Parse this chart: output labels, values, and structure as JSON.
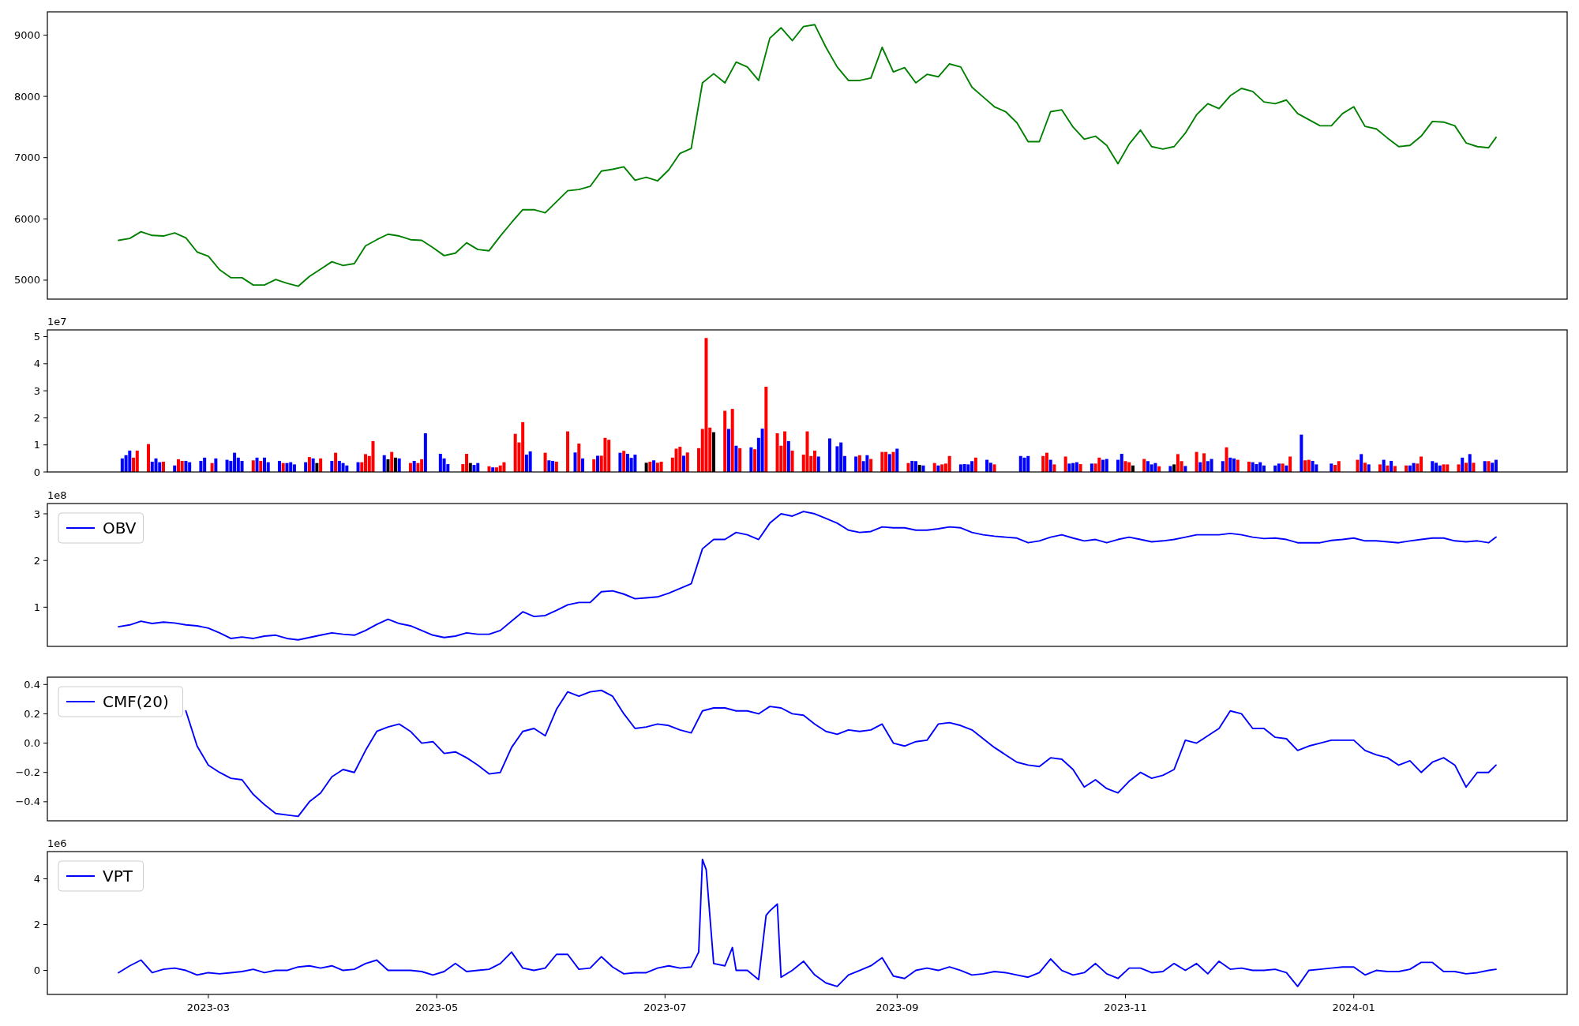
{
  "chart_data": [
    {
      "type": "line",
      "xlim": [
        "2023-01-17",
        "2024-02-27"
      ],
      "ylim": [
        4690,
        9380
      ],
      "yticks": [
        5000,
        6000,
        7000,
        8000,
        9000
      ],
      "tick_labels": "y",
      "x": [
        "2023-02-05",
        "2023-02-08",
        "2023-02-11",
        "2023-02-14",
        "2023-02-17",
        "2023-02-20",
        "2023-02-23",
        "2023-02-26",
        "2023-03-01",
        "2023-03-04",
        "2023-03-07",
        "2023-03-10",
        "2023-03-13",
        "2023-03-16",
        "2023-03-19",
        "2023-03-22",
        "2023-03-25",
        "2023-03-28",
        "2023-03-31",
        "2023-04-03",
        "2023-04-06",
        "2023-04-09",
        "2023-04-12",
        "2023-04-15",
        "2023-04-18",
        "2023-04-21",
        "2023-04-24",
        "2023-04-27",
        "2023-04-30",
        "2023-05-03",
        "2023-05-06",
        "2023-05-09",
        "2023-05-12",
        "2023-05-15",
        "2023-05-18",
        "2023-05-21",
        "2023-05-24",
        "2023-05-27",
        "2023-05-30",
        "2023-06-02",
        "2023-06-05",
        "2023-06-08",
        "2023-06-11",
        "2023-06-14",
        "2023-06-17",
        "2023-06-20",
        "2023-06-23",
        "2023-06-26",
        "2023-06-29",
        "2023-07-02",
        "2023-07-05",
        "2023-07-08",
        "2023-07-11",
        "2023-07-14",
        "2023-07-17",
        "2023-07-20",
        "2023-07-23",
        "2023-07-26",
        "2023-07-29",
        "2023-08-01",
        "2023-08-04",
        "2023-08-07",
        "2023-08-10",
        "2023-08-13",
        "2023-08-16",
        "2023-08-19",
        "2023-08-22",
        "2023-08-25",
        "2023-08-28",
        "2023-08-31",
        "2023-09-03",
        "2023-09-06",
        "2023-09-09",
        "2023-09-12",
        "2023-09-15",
        "2023-09-18",
        "2023-09-21",
        "2023-09-24",
        "2023-09-27",
        "2023-09-30",
        "2023-10-03",
        "2023-10-06",
        "2023-10-09",
        "2023-10-12",
        "2023-10-15",
        "2023-10-18",
        "2023-10-21",
        "2023-10-24",
        "2023-10-27",
        "2023-10-30",
        "2023-11-02",
        "2023-11-05",
        "2023-11-08",
        "2023-11-11",
        "2023-11-14",
        "2023-11-17",
        "2023-11-20",
        "2023-11-23",
        "2023-11-26",
        "2023-11-29",
        "2023-12-02",
        "2023-12-05",
        "2023-12-08",
        "2023-12-11",
        "2023-12-14",
        "2023-12-17",
        "2023-12-20",
        "2023-12-23",
        "2023-12-26",
        "2023-12-29",
        "2024-01-01",
        "2024-01-04",
        "2024-01-07",
        "2024-01-10",
        "2024-01-13",
        "2024-01-16",
        "2024-01-19",
        "2024-01-22",
        "2024-01-25",
        "2024-01-28",
        "2024-01-31",
        "2024-02-03",
        "2024-02-06",
        "2024-02-08"
      ],
      "series": [
        {
          "color": "#008000",
          "values": [
            5650,
            5680,
            5790,
            5730,
            5720,
            5770,
            5690,
            5460,
            5390,
            5170,
            5040,
            5040,
            4920,
            4920,
            5010,
            4950,
            4900,
            5060,
            5180,
            5300,
            5240,
            5270,
            5560,
            5660,
            5750,
            5720,
            5660,
            5650,
            5530,
            5400,
            5440,
            5610,
            5500,
            5480,
            5720,
            5940,
            6150,
            6150,
            6100,
            6280,
            6460,
            6480,
            6530,
            6780,
            6810,
            6850,
            6630,
            6680,
            6620,
            6800,
            7070,
            7150,
            8220,
            8370,
            8220,
            8560,
            8480,
            8260,
            8950,
            9120,
            8910,
            9140,
            9170,
            8800,
            8480,
            8260,
            8260,
            8300,
            8800,
            8400,
            8470,
            8220,
            8360,
            8320,
            8530,
            8480,
            8150,
            7990,
            7830,
            7750,
            7570,
            7260,
            7260,
            7750,
            7780,
            7500,
            7300,
            7350,
            7200,
            6900,
            7220,
            7450,
            7180,
            7140,
            7180,
            7400,
            7700,
            7880,
            7800,
            8010,
            8130,
            8080,
            7910,
            7880,
            7940,
            7720,
            7620,
            7520,
            7520,
            7720,
            7830,
            7510,
            7470,
            7320,
            7180,
            7200,
            7350,
            7590,
            7580,
            7520,
            7240,
            7180,
            7160,
            7330
          ]
        }
      ]
    },
    {
      "type": "bar",
      "xlim": [
        "2023-01-17",
        "2024-02-27"
      ],
      "ylim": [
        0,
        5.25
      ],
      "yticks": [
        0,
        1,
        2,
        3,
        4,
        5
      ],
      "tick_labels": "y",
      "annotations": [
        "1e7"
      ],
      "x": [
        "2023-02-06",
        "2023-02-07",
        "2023-02-08",
        "2023-02-09",
        "2023-02-10",
        "2023-02-13",
        "2023-02-14",
        "2023-02-15",
        "2023-02-16",
        "2023-02-17",
        "2023-02-20",
        "2023-02-21",
        "2023-02-22",
        "2023-02-23",
        "2023-02-24",
        "2023-02-27",
        "2023-02-28",
        "2023-03-02",
        "2023-03-03",
        "2023-03-06",
        "2023-03-07",
        "2023-03-08",
        "2023-03-09",
        "2023-03-10",
        "2023-03-13",
        "2023-03-14",
        "2023-03-15",
        "2023-03-16",
        "2023-03-17",
        "2023-03-20",
        "2023-03-21",
        "2023-03-22",
        "2023-03-23",
        "2023-03-24",
        "2023-03-27",
        "2023-03-28",
        "2023-03-29",
        "2023-03-30",
        "2023-03-31",
        "2023-04-03",
        "2023-04-04",
        "2023-04-05",
        "2023-04-06",
        "2023-04-07",
        "2023-04-10",
        "2023-04-11",
        "2023-04-12",
        "2023-04-13",
        "2023-04-14",
        "2023-04-17",
        "2023-04-18",
        "2023-04-19",
        "2023-04-20",
        "2023-04-21",
        "2023-04-24",
        "2023-04-25",
        "2023-04-26",
        "2023-04-27",
        "2023-04-28",
        "2023-05-02",
        "2023-05-03",
        "2023-05-04",
        "2023-05-08",
        "2023-05-09",
        "2023-05-10",
        "2023-05-11",
        "2023-05-12",
        "2023-05-15",
        "2023-05-16",
        "2023-05-17",
        "2023-05-18",
        "2023-05-19",
        "2023-05-22",
        "2023-05-23",
        "2023-05-24",
        "2023-05-25",
        "2023-05-26",
        "2023-05-30",
        "2023-05-31",
        "2023-06-01",
        "2023-06-02",
        "2023-06-05",
        "2023-06-07",
        "2023-06-08",
        "2023-06-09",
        "2023-06-12",
        "2023-06-13",
        "2023-06-14",
        "2023-06-15",
        "2023-06-16",
        "2023-06-19",
        "2023-06-20",
        "2023-06-21",
        "2023-06-22",
        "2023-06-23",
        "2023-06-26",
        "2023-06-27",
        "2023-06-28",
        "2023-06-29",
        "2023-06-30",
        "2023-07-03",
        "2023-07-04",
        "2023-07-05",
        "2023-07-06",
        "2023-07-07",
        "2023-07-10",
        "2023-07-11",
        "2023-07-12",
        "2023-07-13",
        "2023-07-14",
        "2023-07-17",
        "2023-07-18",
        "2023-07-19",
        "2023-07-20",
        "2023-07-21",
        "2023-07-24",
        "2023-07-25",
        "2023-07-26",
        "2023-07-27",
        "2023-07-28",
        "2023-07-31",
        "2023-08-01",
        "2023-08-02",
        "2023-08-03",
        "2023-08-04",
        "2023-08-07",
        "2023-08-08",
        "2023-08-09",
        "2023-08-10",
        "2023-08-11",
        "2023-08-14",
        "2023-08-16",
        "2023-08-17",
        "2023-08-18",
        "2023-08-21",
        "2023-08-22",
        "2023-08-23",
        "2023-08-24",
        "2023-08-25",
        "2023-08-28",
        "2023-08-29",
        "2023-08-30",
        "2023-08-31",
        "2023-09-01",
        "2023-09-04",
        "2023-09-05",
        "2023-09-06",
        "2023-09-07",
        "2023-09-08",
        "2023-09-11",
        "2023-09-12",
        "2023-09-13",
        "2023-09-14",
        "2023-09-15",
        "2023-09-18",
        "2023-09-19",
        "2023-09-20",
        "2023-09-21",
        "2023-09-22",
        "2023-09-25",
        "2023-09-26",
        "2023-09-27",
        "2023-10-04",
        "2023-10-05",
        "2023-10-06",
        "2023-10-10",
        "2023-10-11",
        "2023-10-12",
        "2023-10-13",
        "2023-10-16",
        "2023-10-17",
        "2023-10-18",
        "2023-10-19",
        "2023-10-20",
        "2023-10-23",
        "2023-10-24",
        "2023-10-25",
        "2023-10-26",
        "2023-10-27",
        "2023-10-30",
        "2023-10-31",
        "2023-11-01",
        "2023-11-02",
        "2023-11-03",
        "2023-11-06",
        "2023-11-07",
        "2023-11-08",
        "2023-11-09",
        "2023-11-10",
        "2023-11-13",
        "2023-11-14",
        "2023-11-15",
        "2023-11-16",
        "2023-11-17",
        "2023-11-20",
        "2023-11-21",
        "2023-11-22",
        "2023-11-23",
        "2023-11-24",
        "2023-11-27",
        "2023-11-28",
        "2023-11-29",
        "2023-11-30",
        "2023-12-01",
        "2023-12-04",
        "2023-12-05",
        "2023-12-06",
        "2023-12-07",
        "2023-12-08",
        "2023-12-11",
        "2023-12-12",
        "2023-12-13",
        "2023-12-14",
        "2023-12-15",
        "2023-12-18",
        "2023-12-19",
        "2023-12-20",
        "2023-12-21",
        "2023-12-22",
        "2023-12-26",
        "2023-12-27",
        "2023-12-28",
        "2024-01-02",
        "2024-01-03",
        "2024-01-04",
        "2024-01-05",
        "2024-01-08",
        "2024-01-09",
        "2024-01-10",
        "2024-01-11",
        "2024-01-12",
        "2024-01-15",
        "2024-01-16",
        "2024-01-17",
        "2024-01-18",
        "2024-01-19",
        "2024-01-22",
        "2024-01-23",
        "2024-01-24",
        "2024-01-25",
        "2024-01-26",
        "2024-01-29",
        "2024-01-30",
        "2024-01-31",
        "2024-02-01",
        "2024-02-02",
        "2024-02-05",
        "2024-02-06",
        "2024-02-07",
        "2024-02-08"
      ],
      "values": [
        0.5,
        0.62,
        0.79,
        0.53,
        0.79,
        1.03,
        0.38,
        0.5,
        0.36,
        0.38,
        0.24,
        0.47,
        0.41,
        0.41,
        0.36,
        0.41,
        0.53,
        0.33,
        0.5,
        0.45,
        0.41,
        0.71,
        0.53,
        0.41,
        0.43,
        0.53,
        0.41,
        0.53,
        0.36,
        0.41,
        0.33,
        0.33,
        0.36,
        0.28,
        0.36,
        0.55,
        0.5,
        0.33,
        0.5,
        0.41,
        0.71,
        0.41,
        0.33,
        0.24,
        0.36,
        0.36,
        0.66,
        0.59,
        1.14,
        0.62,
        0.47,
        0.74,
        0.53,
        0.5,
        0.33,
        0.41,
        0.33,
        0.47,
        1.43,
        0.67,
        0.5,
        0.29,
        0.29,
        0.67,
        0.33,
        0.26,
        0.33,
        0.21,
        0.17,
        0.17,
        0.24,
        0.36,
        1.41,
        1.09,
        1.84,
        0.64,
        0.76,
        0.71,
        0.43,
        0.41,
        0.38,
        1.5,
        0.72,
        1.05,
        0.5,
        0.47,
        0.6,
        0.6,
        1.26,
        1.19,
        0.71,
        0.78,
        0.67,
        0.52,
        0.64,
        0.34,
        0.38,
        0.43,
        0.34,
        0.38,
        0.53,
        0.86,
        0.93,
        0.6,
        0.72,
        0.88,
        1.59,
        4.95,
        1.64,
        1.47,
        2.26,
        1.59,
        2.33,
        0.97,
        0.88,
        0.91,
        0.84,
        1.26,
        1.6,
        3.15,
        1.43,
        0.97,
        1.5,
        1.14,
        0.79,
        0.64,
        1.5,
        0.59,
        0.79,
        0.57,
        1.24,
        0.95,
        1.09,
        0.59,
        0.57,
        0.62,
        0.4,
        0.62,
        0.48,
        0.74,
        0.74,
        0.66,
        0.74,
        0.86,
        0.33,
        0.41,
        0.4,
        0.26,
        0.24,
        0.33,
        0.24,
        0.28,
        0.31,
        0.59,
        0.28,
        0.29,
        0.28,
        0.4,
        0.53,
        0.45,
        0.34,
        0.28,
        0.59,
        0.53,
        0.59,
        0.59,
        0.71,
        0.45,
        0.28,
        0.57,
        0.31,
        0.33,
        0.36,
        0.29,
        0.31,
        0.31,
        0.53,
        0.45,
        0.48,
        0.45,
        0.67,
        0.4,
        0.36,
        0.24,
        0.48,
        0.4,
        0.28,
        0.33,
        0.21,
        0.22,
        0.28,
        0.66,
        0.4,
        0.22,
        0.74,
        0.36,
        0.69,
        0.4,
        0.48,
        0.4,
        0.91,
        0.53,
        0.5,
        0.45,
        0.38,
        0.36,
        0.29,
        0.36,
        0.24,
        0.24,
        0.31,
        0.31,
        0.24,
        0.57,
        1.38,
        0.43,
        0.45,
        0.41,
        0.28,
        0.31,
        0.26,
        0.4,
        0.45,
        0.66,
        0.34,
        0.28,
        0.28,
        0.45,
        0.24,
        0.41,
        0.22,
        0.24,
        0.24,
        0.33,
        0.31,
        0.57,
        0.4,
        0.34,
        0.24,
        0.28,
        0.28,
        0.28,
        0.53,
        0.34,
        0.66,
        0.34,
        0.4,
        0.4,
        0.34,
        0.45
      ],
      "colors": [
        "#0000ff",
        "#0000ff",
        "#0000ff",
        "#ff0000",
        "#ff0000",
        "#ff0000",
        "#0000ff",
        "#0000ff",
        "#0000ff",
        "#ff0000",
        "#0000ff",
        "#ff0000",
        "#ff0000",
        "#0000ff",
        "#0000ff",
        "#0000ff",
        "#0000ff",
        "#ff0000",
        "#0000ff",
        "#0000ff",
        "#0000ff",
        "#0000ff",
        "#0000ff",
        "#0000ff",
        "#ff0000",
        "#0000ff",
        "#ff0000",
        "#0000ff",
        "#0000ff",
        "#0000ff",
        "#ff0000",
        "#0000ff",
        "#0000ff",
        "#0000ff",
        "#0000ff",
        "#ff0000",
        "#0000ff",
        "#000000",
        "#ff0000",
        "#0000ff",
        "#ff0000",
        "#0000ff",
        "#0000ff",
        "#0000ff",
        "#0000ff",
        "#ff0000",
        "#ff0000",
        "#ff0000",
        "#ff0000",
        "#0000ff",
        "#000000",
        "#ff0000",
        "#000000",
        "#0000ff",
        "#ff0000",
        "#0000ff",
        "#ff0000",
        "#ff0000",
        "#0000ff",
        "#0000ff",
        "#0000ff",
        "#0000ff",
        "#ff0000",
        "#ff0000",
        "#000000",
        "#0000ff",
        "#0000ff",
        "#ff0000",
        "#0000ff",
        "#ff0000",
        "#ff0000",
        "#ff0000",
        "#ff0000",
        "#ff0000",
        "#ff0000",
        "#0000ff",
        "#0000ff",
        "#ff0000",
        "#0000ff",
        "#0000ff",
        "#ff0000",
        "#ff0000",
        "#0000ff",
        "#ff0000",
        "#0000ff",
        "#ff0000",
        "#0000ff",
        "#ff0000",
        "#ff0000",
        "#ff0000",
        "#0000ff",
        "#ff0000",
        "#0000ff",
        "#0000ff",
        "#0000ff",
        "#000000",
        "#ff0000",
        "#0000ff",
        "#ff0000",
        "#ff0000",
        "#ff0000",
        "#ff0000",
        "#ff0000",
        "#0000ff",
        "#ff0000",
        "#ff0000",
        "#ff0000",
        "#ff0000",
        "#ff0000",
        "#000000",
        "#ff0000",
        "#0000ff",
        "#ff0000",
        "#0000ff",
        "#ff0000",
        "#0000ff",
        "#ff0000",
        "#0000ff",
        "#0000ff",
        "#ff0000",
        "#ff0000",
        "#ff0000",
        "#ff0000",
        "#0000ff",
        "#ff0000",
        "#ff0000",
        "#ff0000",
        "#ff0000",
        "#ff0000",
        "#0000ff",
        "#0000ff",
        "#0000ff",
        "#0000ff",
        "#0000ff",
        "#0000ff",
        "#ff0000",
        "#0000ff",
        "#0000ff",
        "#ff0000",
        "#ff0000",
        "#ff0000",
        "#0000ff",
        "#ff0000",
        "#0000ff",
        "#ff0000",
        "#0000ff",
        "#0000ff",
        "#000000",
        "#0000ff",
        "#ff0000",
        "#0000ff",
        "#ff0000",
        "#ff0000",
        "#ff0000",
        "#0000ff",
        "#0000ff",
        "#0000ff",
        "#0000ff",
        "#ff0000",
        "#0000ff",
        "#0000ff",
        "#ff0000",
        "#0000ff",
        "#0000ff",
        "#0000ff",
        "#ff0000",
        "#ff0000",
        "#0000ff",
        "#ff0000",
        "#ff0000",
        "#0000ff",
        "#0000ff",
        "#0000ff",
        "#ff0000",
        "#0000ff",
        "#ff0000",
        "#ff0000",
        "#0000ff",
        "#0000ff",
        "#0000ff",
        "#0000ff",
        "#ff0000",
        "#ff0000",
        "#000000",
        "#ff0000",
        "#0000ff",
        "#0000ff",
        "#0000ff",
        "#ff0000",
        "#0000ff",
        "#000000",
        "#ff0000",
        "#ff0000",
        "#0000ff",
        "#ff0000",
        "#0000ff",
        "#ff0000",
        "#0000ff",
        "#0000ff",
        "#0000ff",
        "#ff0000",
        "#0000ff",
        "#0000ff",
        "#ff0000",
        "#ff0000",
        "#0000ff",
        "#0000ff",
        "#0000ff",
        "#0000ff",
        "#0000ff",
        "#0000ff",
        "#ff0000",
        "#0000ff",
        "#ff0000",
        "#0000ff",
        "#ff0000",
        "#ff0000",
        "#0000ff",
        "#0000ff",
        "#0000ff",
        "#ff0000",
        "#ff0000",
        "#ff0000",
        "#0000ff",
        "#ff0000",
        "#0000ff",
        "#ff0000",
        "#0000ff",
        "#ff0000",
        "#0000ff",
        "#ff0000",
        "#ff0000",
        "#0000ff",
        "#0000ff",
        "#ff0000",
        "#ff0000",
        "#0000ff",
        "#0000ff",
        "#0000ff",
        "#ff0000",
        "#ff0000",
        "#ff0000",
        "#0000ff",
        "#ff0000",
        "#0000ff",
        "#ff0000",
        "#0000ff",
        "#ff0000",
        "#0000ff",
        "#0000ff"
      ]
    },
    {
      "type": "line",
      "xlim": [
        "2023-01-17",
        "2024-02-27"
      ],
      "ylim": [
        0.16,
        3.22
      ],
      "yticks": [
        1,
        2,
        3
      ],
      "tick_labels": "y",
      "annotations": [
        "1e8"
      ],
      "legend": "top left",
      "x": [
        "2023-02-05",
        "2023-02-08",
        "2023-02-11",
        "2023-02-14",
        "2023-02-17",
        "2023-02-20",
        "2023-02-23",
        "2023-02-26",
        "2023-03-01",
        "2023-03-04",
        "2023-03-07",
        "2023-03-10",
        "2023-03-13",
        "2023-03-16",
        "2023-03-19",
        "2023-03-22",
        "2023-03-25",
        "2023-03-28",
        "2023-03-31",
        "2023-04-03",
        "2023-04-06",
        "2023-04-09",
        "2023-04-12",
        "2023-04-15",
        "2023-04-18",
        "2023-04-21",
        "2023-04-24",
        "2023-04-27",
        "2023-04-30",
        "2023-05-03",
        "2023-05-06",
        "2023-05-09",
        "2023-05-12",
        "2023-05-15",
        "2023-05-18",
        "2023-05-21",
        "2023-05-24",
        "2023-05-27",
        "2023-05-30",
        "2023-06-02",
        "2023-06-05",
        "2023-06-08",
        "2023-06-11",
        "2023-06-14",
        "2023-06-17",
        "2023-06-20",
        "2023-06-23",
        "2023-06-26",
        "2023-06-29",
        "2023-07-02",
        "2023-07-05",
        "2023-07-08",
        "2023-07-11",
        "2023-07-14",
        "2023-07-17",
        "2023-07-20",
        "2023-07-23",
        "2023-07-26",
        "2023-07-29",
        "2023-08-01",
        "2023-08-04",
        "2023-08-07",
        "2023-08-10",
        "2023-08-13",
        "2023-08-16",
        "2023-08-19",
        "2023-08-22",
        "2023-08-25",
        "2023-08-28",
        "2023-08-31",
        "2023-09-03",
        "2023-09-06",
        "2023-09-09",
        "2023-09-12",
        "2023-09-15",
        "2023-09-18",
        "2023-09-21",
        "2023-09-24",
        "2023-09-27",
        "2023-09-30",
        "2023-10-03",
        "2023-10-06",
        "2023-10-09",
        "2023-10-12",
        "2023-10-15",
        "2023-10-18",
        "2023-10-21",
        "2023-10-24",
        "2023-10-27",
        "2023-10-30",
        "2023-11-02",
        "2023-11-05",
        "2023-11-08",
        "2023-11-11",
        "2023-11-14",
        "2023-11-17",
        "2023-11-20",
        "2023-11-23",
        "2023-11-26",
        "2023-11-29",
        "2023-12-02",
        "2023-12-05",
        "2023-12-08",
        "2023-12-11",
        "2023-12-14",
        "2023-12-17",
        "2023-12-20",
        "2023-12-23",
        "2023-12-26",
        "2023-12-29",
        "2024-01-01",
        "2024-01-04",
        "2024-01-07",
        "2024-01-10",
        "2024-01-13",
        "2024-01-16",
        "2024-01-19",
        "2024-01-22",
        "2024-01-25",
        "2024-01-28",
        "2024-01-31",
        "2024-02-03",
        "2024-02-06",
        "2024-02-08"
      ],
      "series": [
        {
          "name": "OBV",
          "color": "#0000ff",
          "values": [
            0.58,
            0.62,
            0.7,
            0.65,
            0.68,
            0.66,
            0.62,
            0.6,
            0.55,
            0.45,
            0.33,
            0.36,
            0.33,
            0.38,
            0.4,
            0.33,
            0.3,
            0.35,
            0.4,
            0.45,
            0.42,
            0.4,
            0.5,
            0.63,
            0.74,
            0.65,
            0.6,
            0.5,
            0.4,
            0.35,
            0.38,
            0.45,
            0.42,
            0.42,
            0.5,
            0.7,
            0.9,
            0.8,
            0.82,
            0.93,
            1.05,
            1.1,
            1.1,
            1.33,
            1.35,
            1.28,
            1.18,
            1.2,
            1.22,
            1.3,
            1.4,
            1.5,
            2.25,
            2.45,
            2.45,
            2.6,
            2.55,
            2.45,
            2.8,
            3.0,
            2.95,
            3.05,
            3.0,
            2.9,
            2.8,
            2.65,
            2.6,
            2.62,
            2.72,
            2.7,
            2.7,
            2.65,
            2.65,
            2.68,
            2.72,
            2.7,
            2.6,
            2.55,
            2.52,
            2.5,
            2.48,
            2.38,
            2.42,
            2.5,
            2.55,
            2.48,
            2.42,
            2.45,
            2.38,
            2.45,
            2.5,
            2.45,
            2.4,
            2.42,
            2.45,
            2.5,
            2.55,
            2.55,
            2.55,
            2.58,
            2.55,
            2.5,
            2.47,
            2.48,
            2.45,
            2.38,
            2.38,
            2.38,
            2.43,
            2.45,
            2.48,
            2.42,
            2.42,
            2.4,
            2.38,
            2.42,
            2.45,
            2.48,
            2.48,
            2.42,
            2.4,
            2.42,
            2.38,
            2.5
          ]
        }
      ]
    },
    {
      "type": "line",
      "xlim": [
        "2023-01-17",
        "2024-02-27"
      ],
      "ylim": [
        -0.53,
        0.45
      ],
      "yticks": [
        {
          "value": -0.4,
          "label": "−0.4"
        },
        {
          "value": -0.2,
          "label": "−0.2"
        },
        {
          "value": 0,
          "label": "0.0"
        },
        0.2,
        0.4
      ],
      "tick_labels": "y",
      "legend": "top left",
      "x": [
        "2023-02-23",
        "2023-02-26",
        "2023-03-01",
        "2023-03-04",
        "2023-03-07",
        "2023-03-10",
        "2023-03-13",
        "2023-03-16",
        "2023-03-19",
        "2023-03-22",
        "2023-03-25",
        "2023-03-28",
        "2023-03-31",
        "2023-04-03",
        "2023-04-06",
        "2023-04-09",
        "2023-04-12",
        "2023-04-15",
        "2023-04-18",
        "2023-04-21",
        "2023-04-24",
        "2023-04-27",
        "2023-04-30",
        "2023-05-03",
        "2023-05-06",
        "2023-05-09",
        "2023-05-12",
        "2023-05-15",
        "2023-05-18",
        "2023-05-21",
        "2023-05-24",
        "2023-05-27",
        "2023-05-30",
        "2023-06-02",
        "2023-06-05",
        "2023-06-08",
        "2023-06-11",
        "2023-06-14",
        "2023-06-17",
        "2023-06-20",
        "2023-06-23",
        "2023-06-26",
        "2023-06-29",
        "2023-07-02",
        "2023-07-05",
        "2023-07-08",
        "2023-07-11",
        "2023-07-14",
        "2023-07-17",
        "2023-07-20",
        "2023-07-23",
        "2023-07-26",
        "2023-07-29",
        "2023-08-01",
        "2023-08-04",
        "2023-08-07",
        "2023-08-10",
        "2023-08-13",
        "2023-08-16",
        "2023-08-19",
        "2023-08-22",
        "2023-08-25",
        "2023-08-28",
        "2023-08-31",
        "2023-09-03",
        "2023-09-06",
        "2023-09-09",
        "2023-09-12",
        "2023-09-15",
        "2023-09-18",
        "2023-09-21",
        "2023-09-24",
        "2023-09-27",
        "2023-09-30",
        "2023-10-03",
        "2023-10-06",
        "2023-10-09",
        "2023-10-12",
        "2023-10-15",
        "2023-10-18",
        "2023-10-21",
        "2023-10-24",
        "2023-10-27",
        "2023-10-30",
        "2023-11-02",
        "2023-11-05",
        "2023-11-08",
        "2023-11-11",
        "2023-11-14",
        "2023-11-17",
        "2023-11-20",
        "2023-11-23",
        "2023-11-26",
        "2023-11-29",
        "2023-12-02",
        "2023-12-05",
        "2023-12-08",
        "2023-12-11",
        "2023-12-14",
        "2023-12-17",
        "2023-12-20",
        "2023-12-23",
        "2023-12-26",
        "2023-12-29",
        "2024-01-01",
        "2024-01-04",
        "2024-01-07",
        "2024-01-10",
        "2024-01-13",
        "2024-01-16",
        "2024-01-19",
        "2024-01-22",
        "2024-01-25",
        "2024-01-28",
        "2024-01-31",
        "2024-02-03",
        "2024-02-06",
        "2024-02-08"
      ],
      "series": [
        {
          "name": "CMF(20)",
          "color": "#0000ff",
          "values": [
            0.22,
            -0.02,
            -0.15,
            -0.2,
            -0.24,
            -0.25,
            -0.35,
            -0.42,
            -0.48,
            -0.49,
            -0.5,
            -0.4,
            -0.34,
            -0.23,
            -0.18,
            -0.2,
            -0.05,
            0.08,
            0.11,
            0.13,
            0.08,
            0.0,
            0.01,
            -0.07,
            -0.06,
            -0.1,
            -0.15,
            -0.21,
            -0.2,
            -0.03,
            0.08,
            0.1,
            0.05,
            0.23,
            0.35,
            0.32,
            0.35,
            0.36,
            0.32,
            0.2,
            0.1,
            0.11,
            0.13,
            0.12,
            0.09,
            0.07,
            0.22,
            0.24,
            0.24,
            0.22,
            0.22,
            0.2,
            0.25,
            0.24,
            0.2,
            0.19,
            0.13,
            0.08,
            0.06,
            0.09,
            0.08,
            0.09,
            0.13,
            0.0,
            -0.02,
            0.01,
            0.02,
            0.13,
            0.14,
            0.12,
            0.09,
            0.03,
            -0.03,
            -0.08,
            -0.13,
            -0.15,
            -0.16,
            -0.1,
            -0.11,
            -0.18,
            -0.3,
            -0.25,
            -0.31,
            -0.34,
            -0.26,
            -0.2,
            -0.24,
            -0.22,
            -0.18,
            0.02,
            0.0,
            0.05,
            0.1,
            0.22,
            0.2,
            0.1,
            0.1,
            0.04,
            0.03,
            -0.05,
            -0.02,
            0.0,
            0.02,
            0.02,
            0.02,
            -0.05,
            -0.08,
            -0.1,
            -0.15,
            -0.12,
            -0.2,
            -0.13,
            -0.1,
            -0.15,
            -0.3,
            -0.2,
            -0.2,
            -0.15
          ]
        }
      ]
    },
    {
      "type": "line",
      "xlim": [
        "2023-01-17",
        "2024-02-27"
      ],
      "ylim": [
        -1.05,
        5.19
      ],
      "yticks": [
        0,
        2,
        4
      ],
      "annotations": [
        "1e6"
      ],
      "legend": "top left",
      "xticks": [
        {
          "value": "2023-03-01",
          "label": "2023-03"
        },
        {
          "value": "2023-05-01",
          "label": "2023-05"
        },
        {
          "value": "2023-07-01",
          "label": "2023-07"
        },
        {
          "value": "2023-09-01",
          "label": "2023-09"
        },
        {
          "value": "2023-11-01",
          "label": "2023-11"
        },
        {
          "value": "2024-01-01",
          "label": "2024-01"
        }
      ],
      "x": [
        "2023-02-05",
        "2023-02-08",
        "2023-02-11",
        "2023-02-14",
        "2023-02-17",
        "2023-02-20",
        "2023-02-23",
        "2023-02-26",
        "2023-03-01",
        "2023-03-04",
        "2023-03-07",
        "2023-03-10",
        "2023-03-13",
        "2023-03-16",
        "2023-03-19",
        "2023-03-22",
        "2023-03-25",
        "2023-03-28",
        "2023-03-31",
        "2023-04-03",
        "2023-04-06",
        "2023-04-09",
        "2023-04-12",
        "2023-04-15",
        "2023-04-18",
        "2023-04-21",
        "2023-04-24",
        "2023-04-27",
        "2023-04-30",
        "2023-05-03",
        "2023-05-06",
        "2023-05-09",
        "2023-05-12",
        "2023-05-15",
        "2023-05-18",
        "2023-05-21",
        "2023-05-24",
        "2023-05-27",
        "2023-05-30",
        "2023-06-02",
        "2023-06-05",
        "2023-06-08",
        "2023-06-11",
        "2023-06-14",
        "2023-06-17",
        "2023-06-20",
        "2023-06-23",
        "2023-06-26",
        "2023-06-29",
        "2023-07-02",
        "2023-07-05",
        "2023-07-08",
        "2023-07-10",
        "2023-07-11",
        "2023-07-12",
        "2023-07-14",
        "2023-07-17",
        "2023-07-19",
        "2023-07-20",
        "2023-07-23",
        "2023-07-26",
        "2023-07-28",
        "2023-07-29",
        "2023-07-31",
        "2023-08-01",
        "2023-08-04",
        "2023-08-07",
        "2023-08-10",
        "2023-08-13",
        "2023-08-16",
        "2023-08-19",
        "2023-08-22",
        "2023-08-25",
        "2023-08-28",
        "2023-08-31",
        "2023-09-03",
        "2023-09-06",
        "2023-09-09",
        "2023-09-12",
        "2023-09-15",
        "2023-09-18",
        "2023-09-21",
        "2023-09-24",
        "2023-09-27",
        "2023-09-30",
        "2023-10-03",
        "2023-10-06",
        "2023-10-09",
        "2023-10-12",
        "2023-10-15",
        "2023-10-18",
        "2023-10-21",
        "2023-10-24",
        "2023-10-27",
        "2023-10-30",
        "2023-11-02",
        "2023-11-05",
        "2023-11-08",
        "2023-11-11",
        "2023-11-14",
        "2023-11-17",
        "2023-11-20",
        "2023-11-23",
        "2023-11-26",
        "2023-11-29",
        "2023-12-02",
        "2023-12-05",
        "2023-12-08",
        "2023-12-11",
        "2023-12-14",
        "2023-12-17",
        "2023-12-20",
        "2023-12-23",
        "2023-12-26",
        "2023-12-29",
        "2024-01-01",
        "2024-01-04",
        "2024-01-07",
        "2024-01-10",
        "2024-01-13",
        "2024-01-16",
        "2024-01-19",
        "2024-01-22",
        "2024-01-25",
        "2024-01-28",
        "2024-01-31",
        "2024-02-03",
        "2024-02-06",
        "2024-02-08"
      ],
      "series": [
        {
          "name": "VPT",
          "color": "#0000ff",
          "values": [
            -0.1,
            0.2,
            0.45,
            -0.1,
            0.05,
            0.1,
            0.0,
            -0.2,
            -0.1,
            -0.15,
            -0.1,
            -0.05,
            0.05,
            -0.1,
            0.0,
            0.0,
            0.15,
            0.2,
            0.1,
            0.2,
            0.0,
            0.05,
            0.3,
            0.45,
            0.0,
            0.0,
            0.0,
            -0.05,
            -0.2,
            -0.05,
            0.3,
            -0.05,
            0.0,
            0.05,
            0.3,
            0.8,
            0.1,
            0.0,
            0.1,
            0.7,
            0.7,
            0.05,
            0.1,
            0.6,
            0.15,
            -0.15,
            -0.1,
            -0.1,
            0.1,
            0.2,
            0.1,
            0.15,
            0.8,
            4.85,
            4.4,
            0.3,
            0.2,
            1.0,
            0.0,
            0.0,
            -0.4,
            2.4,
            2.6,
            2.9,
            -0.3,
            0.0,
            0.4,
            -0.2,
            -0.55,
            -0.7,
            -0.2,
            0.0,
            0.2,
            0.55,
            -0.25,
            -0.35,
            0.0,
            0.1,
            0.0,
            0.15,
            0.0,
            -0.2,
            -0.15,
            -0.05,
            -0.1,
            -0.2,
            -0.3,
            -0.1,
            0.5,
            0.0,
            -0.2,
            -0.1,
            0.3,
            -0.15,
            -0.35,
            0.1,
            0.1,
            -0.1,
            -0.05,
            0.3,
            0.0,
            0.3,
            -0.15,
            0.4,
            0.05,
            0.1,
            0.0,
            0.0,
            0.05,
            -0.1,
            -0.7,
            0.0,
            0.05,
            0.1,
            0.15,
            0.15,
            -0.2,
            0.0,
            -0.05,
            -0.05,
            0.05,
            0.35,
            0.35,
            -0.05,
            -0.05,
            -0.15,
            -0.1,
            0.0,
            0.05
          ]
        }
      ]
    }
  ]
}
